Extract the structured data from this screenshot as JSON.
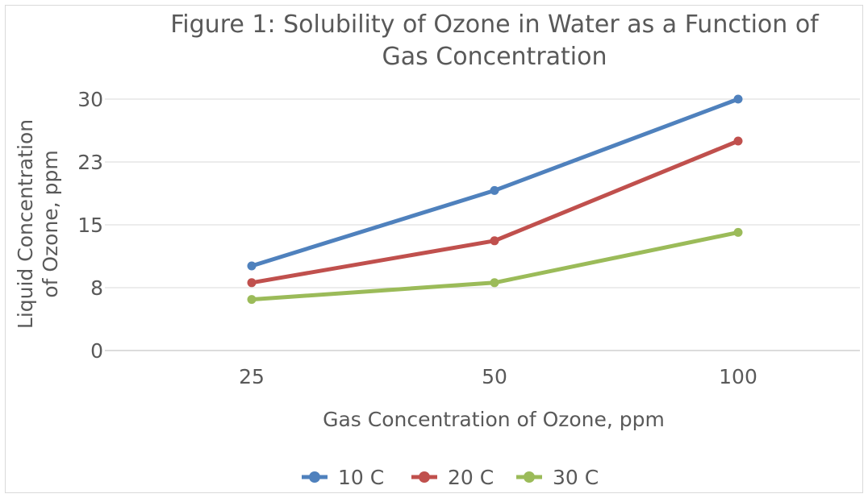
{
  "chart_data": {
    "type": "line",
    "title_lines": [
      "Figure 1: Solubility of Ozone in Water as a Function of",
      "Gas Concentration"
    ],
    "xlabel": "Gas Concentration of Ozone, ppm",
    "ylabel_lines": [
      "Liquid Concentration",
      "of Ozone, ppm"
    ],
    "categories": [
      "25",
      "50",
      "100"
    ],
    "y_ticks": [
      "0",
      "8",
      "15",
      "23",
      "30"
    ],
    "ylim": [
      0,
      30
    ],
    "grid": "horizontal",
    "legend_position": "bottom",
    "series": [
      {
        "name": "10 C",
        "color": "#4f81bd",
        "values": [
          10.1,
          19.1,
          30
        ]
      },
      {
        "name": "20 C",
        "color": "#c0504d",
        "values": [
          8.1,
          13.1,
          25
        ]
      },
      {
        "name": "30 C",
        "color": "#9bbb59",
        "values": [
          6.1,
          8.1,
          14.1
        ]
      }
    ]
  }
}
